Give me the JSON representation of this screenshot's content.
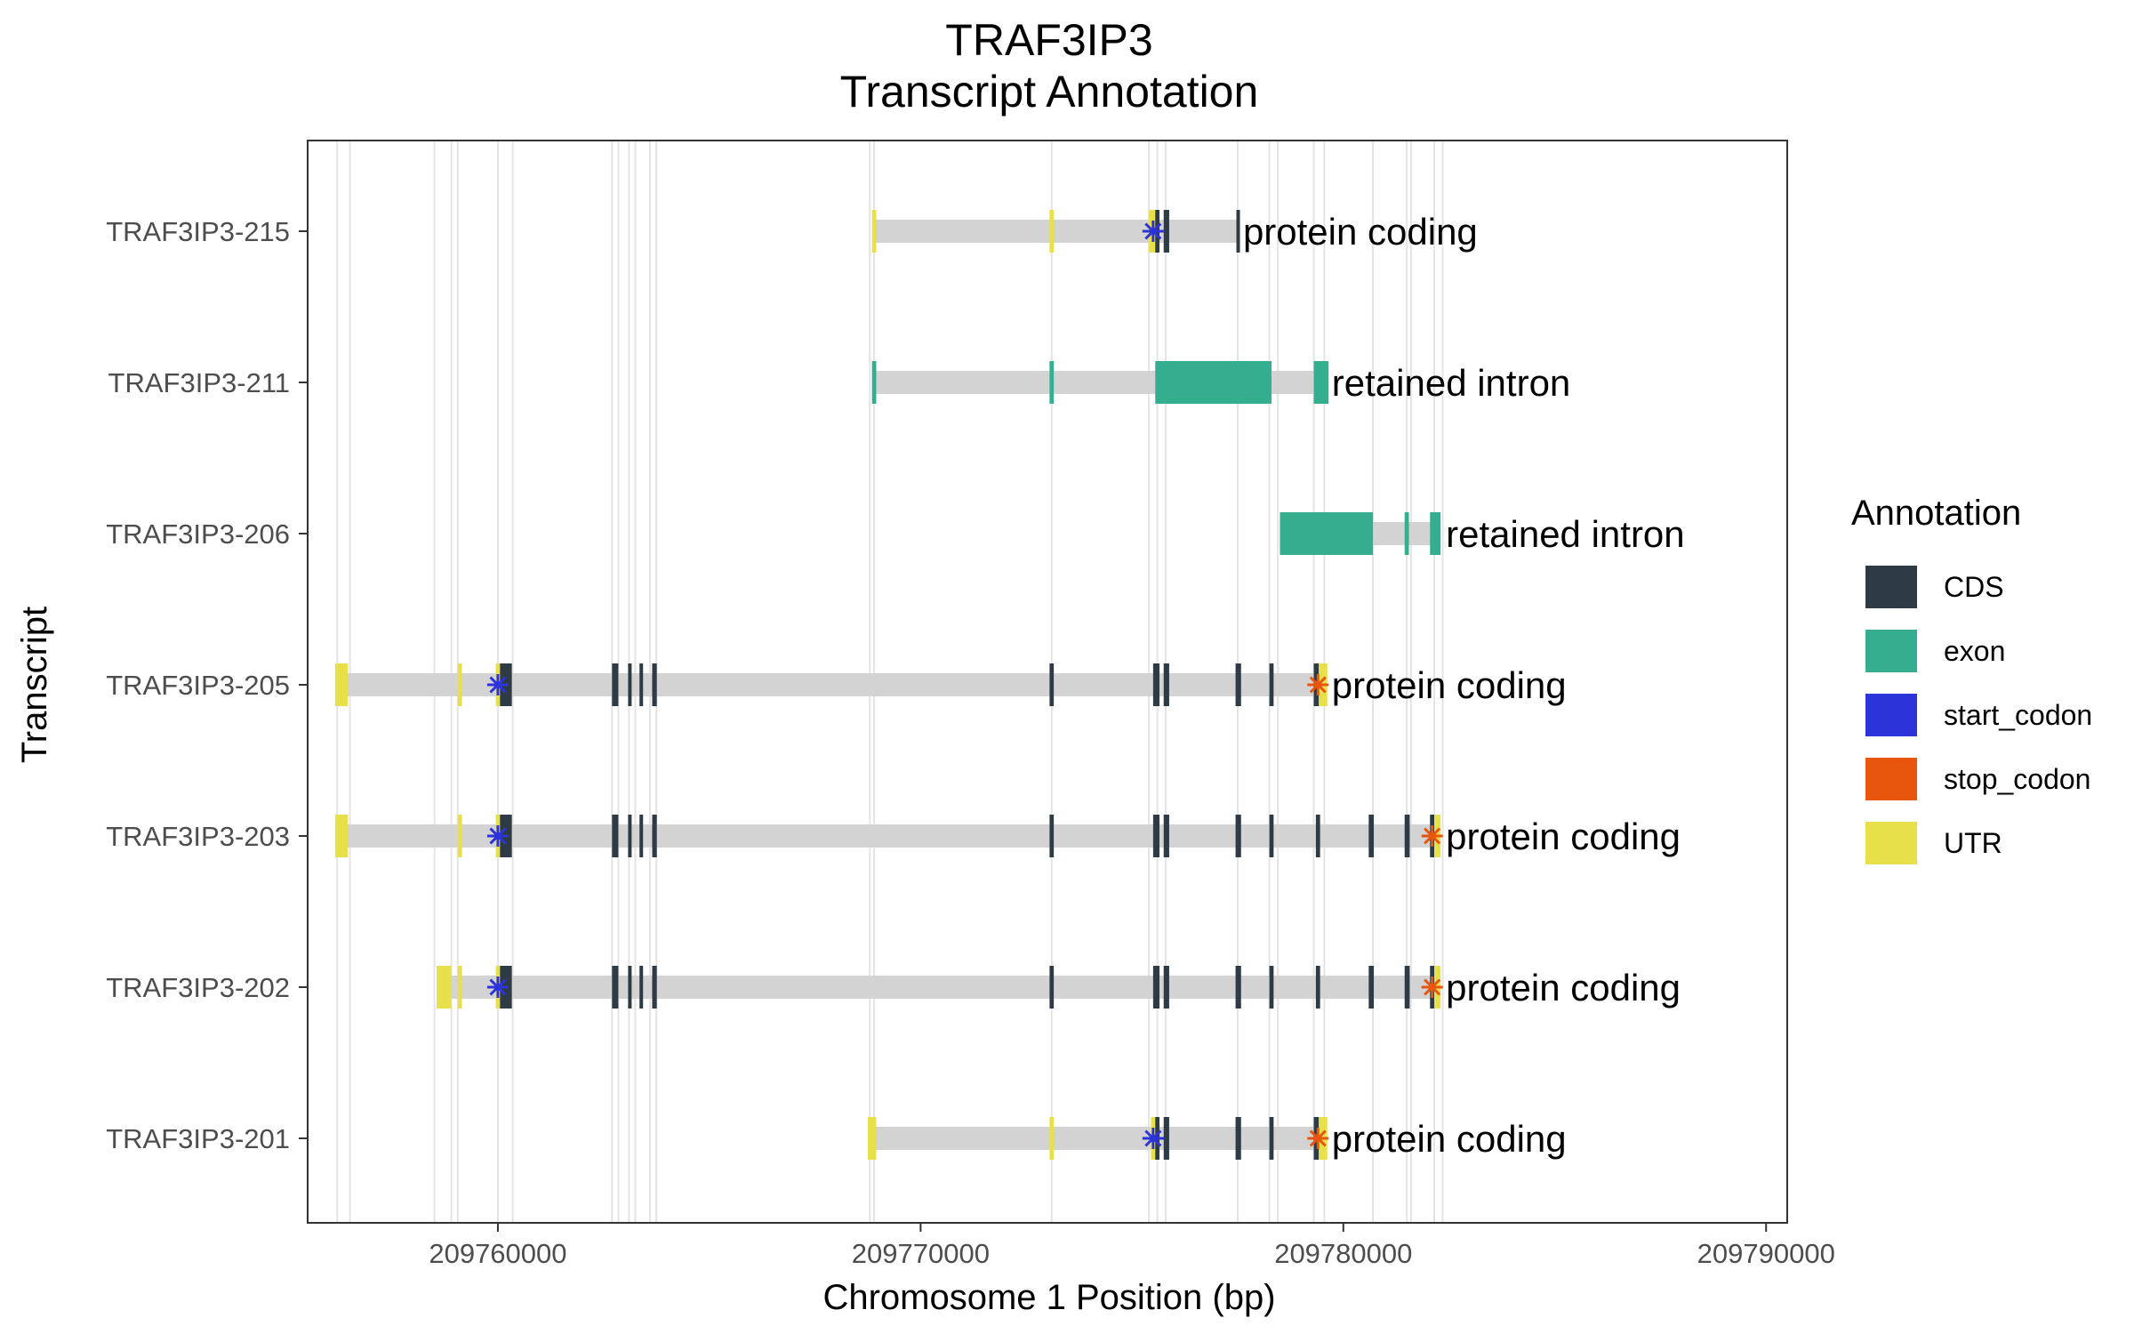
{
  "chart_data": {
    "type": "gene-structure",
    "title_line1": "TRAF3IP3",
    "title_line2": "Transcript Annotation",
    "xlabel": "Chromosome 1 Position (bp)",
    "ylabel": "Transcript",
    "xlim": [
      209755500,
      209790500
    ],
    "x_ticks": [
      209760000,
      209770000,
      209780000,
      209790000
    ],
    "x_tick_labels": [
      "209760000",
      "209770000",
      "209780000",
      "209790000"
    ],
    "grid": "vertical guide lines at feature boundaries",
    "legend_position": "right",
    "legend": {
      "title": "Annotation",
      "entries": [
        {
          "label": "CDS",
          "color": "#2f3b44"
        },
        {
          "label": "exon",
          "color": "#35ae8f"
        },
        {
          "label": "start_codon",
          "color": "#2c33d8"
        },
        {
          "label": "stop_codon",
          "color": "#e8550c"
        },
        {
          "label": "UTR",
          "color": "#e8e04a"
        }
      ]
    },
    "colors": {
      "CDS": "#2f3b44",
      "exon": "#35ae8f",
      "start_codon": "#2c33d8",
      "stop_codon": "#e8550c",
      "UTR": "#e8e04a",
      "intron": "#d3d3d3",
      "guide": "#e4e4e4"
    },
    "guide_positions": [
      209756200,
      209756500,
      209758500,
      209758900,
      209759050,
      209760000,
      209760350,
      209762700,
      209762850,
      209763100,
      209763250,
      209763600,
      209763750,
      209768800,
      209768900,
      209773100,
      209775400,
      209775600,
      209775800,
      209777500,
      209778250,
      209778450,
      209779300,
      209779550,
      209780700,
      209781500,
      209781600,
      209782150,
      209782350
    ],
    "transcripts": [
      {
        "name": "TRAF3IP3-215",
        "biotype": "protein coding",
        "start": 209768900,
        "end": 209777500,
        "features": [
          {
            "type": "UTR",
            "start": 209768850,
            "end": 209768950
          },
          {
            "type": "UTR",
            "start": 209773050,
            "end": 209773150
          },
          {
            "type": "UTR",
            "start": 209775400,
            "end": 209775550
          },
          {
            "type": "CDS",
            "start": 209775550,
            "end": 209775650
          },
          {
            "type": "CDS",
            "start": 209775750,
            "end": 209775880
          },
          {
            "type": "CDS",
            "start": 209777470,
            "end": 209777530
          }
        ],
        "codons": [
          {
            "type": "start_codon",
            "position": 209775500
          }
        ]
      },
      {
        "name": "TRAF3IP3-211",
        "biotype": "retained intron",
        "start": 209768900,
        "end": 209779600,
        "features": [
          {
            "type": "exon",
            "start": 209768850,
            "end": 209768950
          },
          {
            "type": "exon",
            "start": 209773050,
            "end": 209773150
          },
          {
            "type": "exon",
            "start": 209775550,
            "end": 209778300
          },
          {
            "type": "exon",
            "start": 209779300,
            "end": 209779650
          }
        ],
        "codons": []
      },
      {
        "name": "TRAF3IP3-206",
        "biotype": "retained intron",
        "start": 209778500,
        "end": 209782300,
        "features": [
          {
            "type": "exon",
            "start": 209778500,
            "end": 209780700
          },
          {
            "type": "exon",
            "start": 209781450,
            "end": 209781550
          },
          {
            "type": "exon",
            "start": 209782050,
            "end": 209782300
          }
        ],
        "codons": []
      },
      {
        "name": "TRAF3IP3-205",
        "biotype": "protein coding",
        "start": 209756200,
        "end": 209779600,
        "features": [
          {
            "type": "UTR",
            "start": 209756150,
            "end": 209756450
          },
          {
            "type": "UTR",
            "start": 209759050,
            "end": 209759150
          },
          {
            "type": "UTR",
            "start": 209759950,
            "end": 209760050
          },
          {
            "type": "CDS",
            "start": 209760050,
            "end": 209760330
          },
          {
            "type": "CDS",
            "start": 209762700,
            "end": 209762850
          },
          {
            "type": "CDS",
            "start": 209763080,
            "end": 209763150
          },
          {
            "type": "CDS",
            "start": 209763350,
            "end": 209763400
          },
          {
            "type": "CDS",
            "start": 209763650,
            "end": 209763760
          },
          {
            "type": "CDS",
            "start": 209773050,
            "end": 209773150
          },
          {
            "type": "CDS",
            "start": 209775500,
            "end": 209775650
          },
          {
            "type": "CDS",
            "start": 209775750,
            "end": 209775880
          },
          {
            "type": "CDS",
            "start": 209777450,
            "end": 209777580
          },
          {
            "type": "CDS",
            "start": 209778250,
            "end": 209778350
          },
          {
            "type": "CDS",
            "start": 209779300,
            "end": 209779420
          },
          {
            "type": "UTR",
            "start": 209779420,
            "end": 209779620
          }
        ],
        "codons": [
          {
            "type": "start_codon",
            "position": 209760000
          },
          {
            "type": "stop_codon",
            "position": 209779400
          }
        ]
      },
      {
        "name": "TRAF3IP3-203",
        "biotype": "protein coding",
        "start": 209756200,
        "end": 209782300,
        "features": [
          {
            "type": "UTR",
            "start": 209756150,
            "end": 209756450
          },
          {
            "type": "UTR",
            "start": 209759050,
            "end": 209759150
          },
          {
            "type": "UTR",
            "start": 209759950,
            "end": 209760050
          },
          {
            "type": "CDS",
            "start": 209760050,
            "end": 209760330
          },
          {
            "type": "CDS",
            "start": 209762700,
            "end": 209762850
          },
          {
            "type": "CDS",
            "start": 209763080,
            "end": 209763150
          },
          {
            "type": "CDS",
            "start": 209763350,
            "end": 209763400
          },
          {
            "type": "CDS",
            "start": 209763650,
            "end": 209763760
          },
          {
            "type": "CDS",
            "start": 209773050,
            "end": 209773150
          },
          {
            "type": "CDS",
            "start": 209775500,
            "end": 209775650
          },
          {
            "type": "CDS",
            "start": 209775750,
            "end": 209775880
          },
          {
            "type": "CDS",
            "start": 209777450,
            "end": 209777580
          },
          {
            "type": "CDS",
            "start": 209778250,
            "end": 209778350
          },
          {
            "type": "CDS",
            "start": 209779350,
            "end": 209779450
          },
          {
            "type": "CDS",
            "start": 209780600,
            "end": 209780720
          },
          {
            "type": "CDS",
            "start": 209781450,
            "end": 209781570
          },
          {
            "type": "CDS",
            "start": 209782050,
            "end": 209782150
          },
          {
            "type": "UTR",
            "start": 209782150,
            "end": 209782300
          }
        ],
        "codons": [
          {
            "type": "start_codon",
            "position": 209760000
          },
          {
            "type": "stop_codon",
            "position": 209782100
          }
        ]
      },
      {
        "name": "TRAF3IP3-202",
        "biotype": "protein coding",
        "start": 209758600,
        "end": 209782300,
        "features": [
          {
            "type": "UTR",
            "start": 209758550,
            "end": 209758900
          },
          {
            "type": "UTR",
            "start": 209759050,
            "end": 209759150
          },
          {
            "type": "UTR",
            "start": 209759950,
            "end": 209760050
          },
          {
            "type": "CDS",
            "start": 209760050,
            "end": 209760330
          },
          {
            "type": "CDS",
            "start": 209762700,
            "end": 209762850
          },
          {
            "type": "CDS",
            "start": 209763080,
            "end": 209763150
          },
          {
            "type": "CDS",
            "start": 209763350,
            "end": 209763400
          },
          {
            "type": "CDS",
            "start": 209763650,
            "end": 209763760
          },
          {
            "type": "CDS",
            "start": 209773050,
            "end": 209773150
          },
          {
            "type": "CDS",
            "start": 209775500,
            "end": 209775650
          },
          {
            "type": "CDS",
            "start": 209775750,
            "end": 209775880
          },
          {
            "type": "CDS",
            "start": 209777450,
            "end": 209777580
          },
          {
            "type": "CDS",
            "start": 209778250,
            "end": 209778350
          },
          {
            "type": "CDS",
            "start": 209779350,
            "end": 209779450
          },
          {
            "type": "CDS",
            "start": 209780600,
            "end": 209780720
          },
          {
            "type": "CDS",
            "start": 209781450,
            "end": 209781570
          },
          {
            "type": "CDS",
            "start": 209782050,
            "end": 209782150
          },
          {
            "type": "UTR",
            "start": 209782150,
            "end": 209782300
          }
        ],
        "codons": [
          {
            "type": "start_codon",
            "position": 209760000
          },
          {
            "type": "stop_codon",
            "position": 209782100
          }
        ]
      },
      {
        "name": "TRAF3IP3-201",
        "biotype": "protein coding",
        "start": 209768800,
        "end": 209779600,
        "features": [
          {
            "type": "UTR",
            "start": 209768750,
            "end": 209768950
          },
          {
            "type": "UTR",
            "start": 209773050,
            "end": 209773150
          },
          {
            "type": "UTR",
            "start": 209775450,
            "end": 209775550
          },
          {
            "type": "CDS",
            "start": 209775550,
            "end": 209775650
          },
          {
            "type": "CDS",
            "start": 209775750,
            "end": 209775880
          },
          {
            "type": "CDS",
            "start": 209777450,
            "end": 209777580
          },
          {
            "type": "CDS",
            "start": 209778250,
            "end": 209778350
          },
          {
            "type": "CDS",
            "start": 209779300,
            "end": 209779420
          },
          {
            "type": "UTR",
            "start": 209779420,
            "end": 209779620
          }
        ],
        "codons": [
          {
            "type": "start_codon",
            "position": 209775500
          },
          {
            "type": "stop_codon",
            "position": 209779400
          }
        ]
      }
    ]
  }
}
